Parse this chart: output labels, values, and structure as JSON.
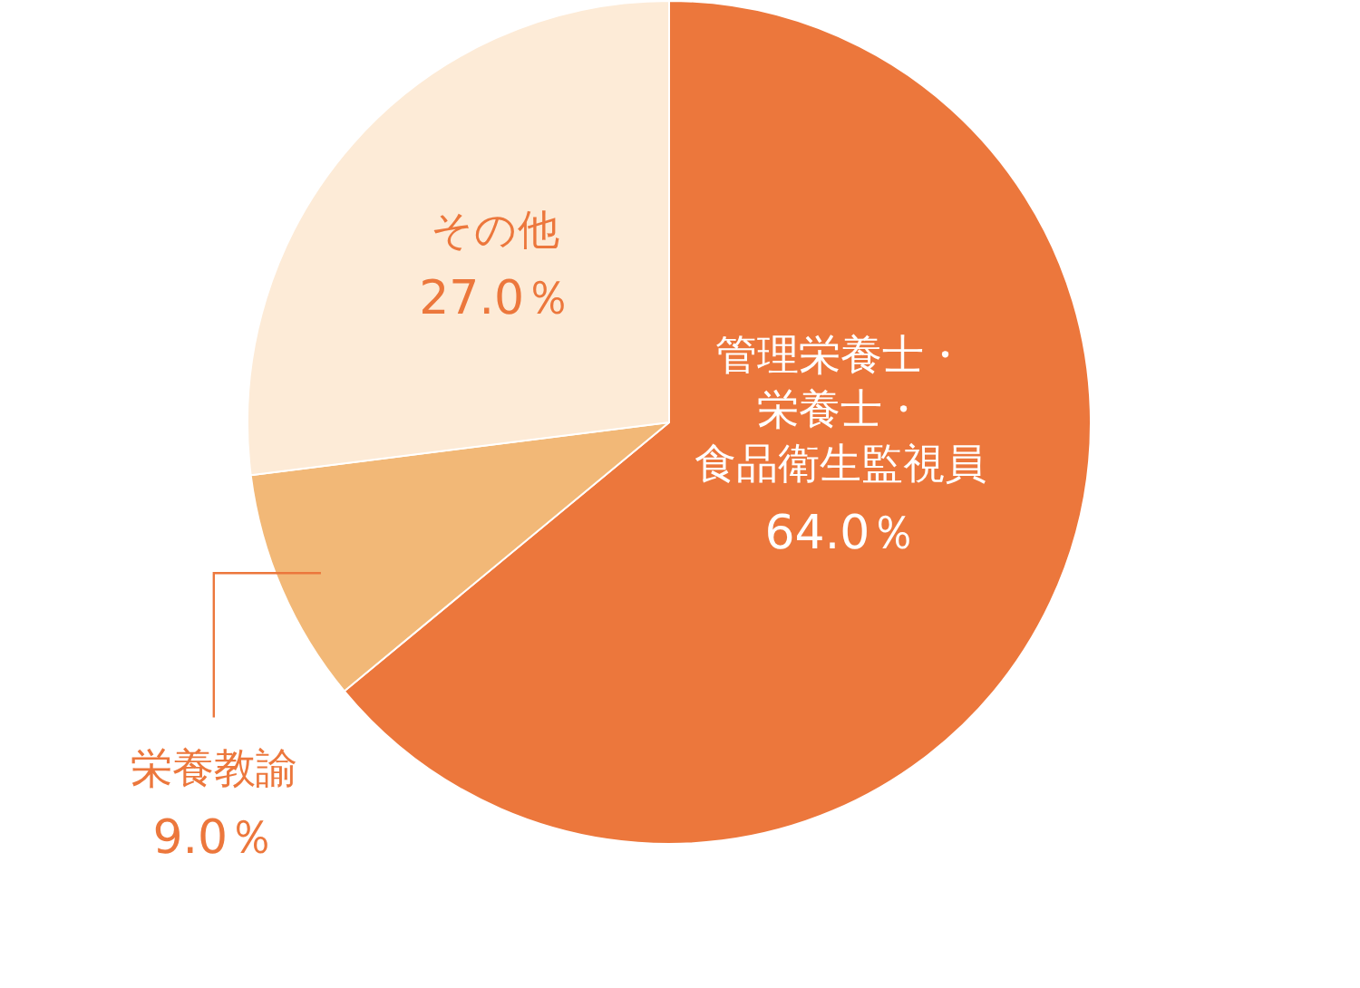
{
  "chart_data": {
    "type": "pie",
    "categories": [
      "管理栄養士・栄養士・食品衛生監視員",
      "栄養教諭",
      "その他"
    ],
    "values": [
      64.0,
      9.0,
      27.0
    ],
    "colors": [
      "#ec773c",
      "#f2b877",
      "#fdebd7"
    ],
    "value_labels": [
      "64.0％",
      "9.0％",
      "27.0％"
    ],
    "legend": false
  }
}
